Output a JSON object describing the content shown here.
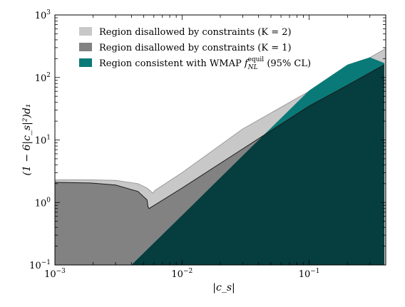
{
  "chart_data": {
    "type": "area",
    "xlabel": "|c_s|",
    "ylabel": "(1 − 6|c_s|²)d₁",
    "x_scale": "log",
    "y_scale": "log",
    "xlim": [
      0.001,
      0.4
    ],
    "ylim": [
      0.1,
      1000
    ],
    "grid": false,
    "legend_position": "top-left",
    "x_ticks": [
      {
        "value": 0.001,
        "base": "10",
        "exp": "−3"
      },
      {
        "value": 0.01,
        "base": "10",
        "exp": "−2"
      },
      {
        "value": 0.1,
        "base": "10",
        "exp": "−1"
      }
    ],
    "y_ticks": [
      {
        "value": 0.1,
        "base": "10",
        "exp": "−1"
      },
      {
        "value": 1,
        "base": "10",
        "exp": "0"
      },
      {
        "value": 10,
        "base": "10",
        "exp": "1"
      },
      {
        "value": 100,
        "base": "10",
        "exp": "2"
      },
      {
        "value": 1000,
        "base": "10",
        "exp": "3"
      }
    ],
    "series": [
      {
        "name": "Region disallowed by constraints (K = 2)",
        "color": "#c8c8c8",
        "upper_boundary": {
          "x": [
            0.001,
            0.0019,
            0.003,
            0.0045,
            0.0053,
            0.0059,
            0.0061,
            0.01,
            0.03,
            0.1,
            0.2,
            0.4
          ],
          "y": [
            2.3,
            2.3,
            2.25,
            2.0,
            1.7,
            1.4,
            1.55,
            3.0,
            15,
            60,
            130,
            290
          ]
        }
      },
      {
        "name": "Region disallowed by constraints (K = 1)",
        "color": "#828282",
        "upper_boundary": {
          "x": [
            0.001,
            0.0019,
            0.003,
            0.0045,
            0.0053,
            0.0054,
            0.0055,
            0.01,
            0.03,
            0.1,
            0.2,
            0.39
          ],
          "y": [
            2.1,
            2.05,
            1.9,
            1.5,
            1.1,
            0.85,
            0.8,
            1.7,
            7.2,
            35,
            75,
            160
          ]
        }
      },
      {
        "name": "Region consistent with WMAP",
        "color": "#0a7a78",
        "dark_fill": "#063d3e",
        "edge": {
          "x": [
            0.004,
            0.01,
            0.03,
            0.1,
            0.2,
            0.3,
            0.39
          ],
          "y": [
            0.1,
            0.62,
            5.6,
            62,
            160,
            210,
            170
          ]
        }
      }
    ],
    "legend": [
      {
        "label": "Region disallowed by constraints (K = 2)",
        "color": "#c8c8c8"
      },
      {
        "label": "Region disallowed by constraints (K = 1)",
        "color": "#828282"
      },
      {
        "prefix": "Region consistent with WMAP ",
        "symbol": "f",
        "sub": "NL",
        "sup": "equil",
        "suffix": " (95% CL)",
        "color": "#0a7a78"
      }
    ]
  }
}
